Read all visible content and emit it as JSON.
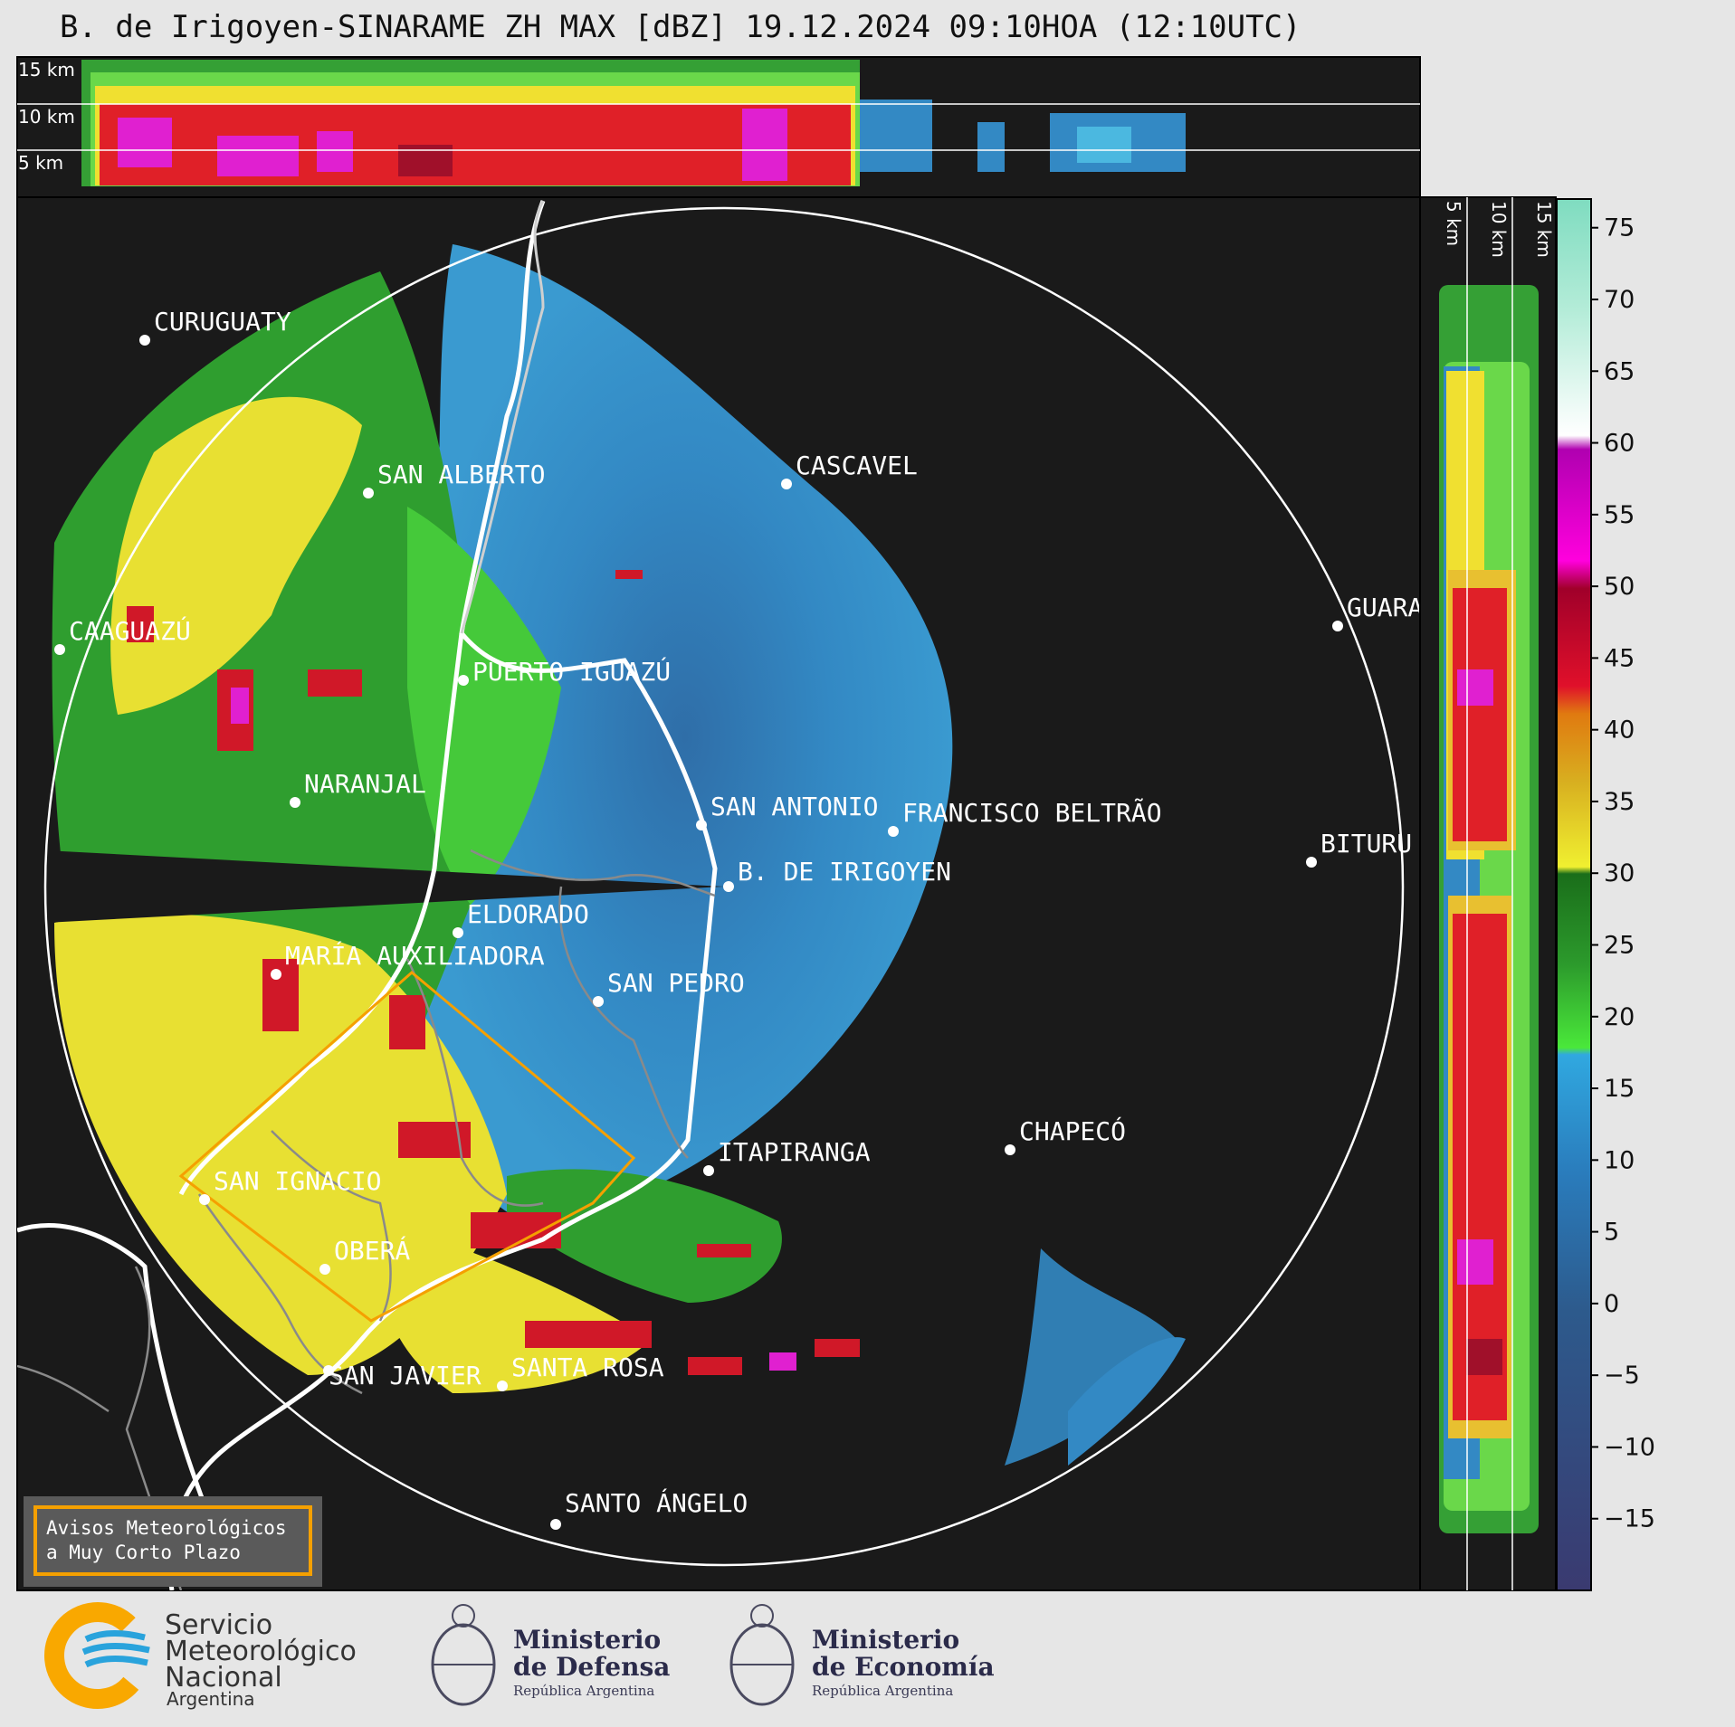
{
  "title": "B. de Irigoyen-SINARAME ZH MAX [dBZ] 19.12.2024 09:10HOA (12:10UTC)",
  "top_altitude_labels": [
    "15 km",
    "10 km",
    "5 km"
  ],
  "side_altitude_labels": [
    "5 km",
    "10 km",
    "15 km"
  ],
  "cities": [
    {
      "name": "CURUGUATY"
    },
    {
      "name": "SAN ALBERTO"
    },
    {
      "name": "CASCAVEL"
    },
    {
      "name": "CAAGUAZÚ"
    },
    {
      "name": "PUERTO IGUAZÚ"
    },
    {
      "name": "GUARA"
    },
    {
      "name": "NARANJAL"
    },
    {
      "name": "SAN ANTONIO"
    },
    {
      "name": "FRANCISCO BELTRÃO"
    },
    {
      "name": "BITURU"
    },
    {
      "name": "B. DE IRIGOYEN"
    },
    {
      "name": "ELDORADO"
    },
    {
      "name": "MARÍA AUXILIADORA"
    },
    {
      "name": "SAN PEDRO"
    },
    {
      "name": "ITAPIRANGA"
    },
    {
      "name": "CHAPECÓ"
    },
    {
      "name": "SAN IGNACIO"
    },
    {
      "name": "OBERÁ"
    },
    {
      "name": "SAN JAVIER"
    },
    {
      "name": "SANTA ROSA"
    },
    {
      "name": "SANTO ÁNGELO"
    }
  ],
  "colorbar": {
    "unit": "dBZ",
    "ticks": [
      "75",
      "70",
      "65",
      "60",
      "55",
      "50",
      "45",
      "40",
      "35",
      "30",
      "25",
      "20",
      "15",
      "10",
      "5",
      "0",
      "−5",
      "−10",
      "−15"
    ],
    "range": [
      -20,
      77
    ]
  },
  "aviso": {
    "line1": "Avisos Meteorológicos",
    "line2": "a Muy Corto Plazo"
  },
  "logos": {
    "smn": [
      "Servicio",
      "Meteorológico",
      "Nacional",
      "Argentina"
    ],
    "defensa": [
      "Ministerio",
      "de Defensa",
      "República Argentina"
    ],
    "economia": [
      "Ministerio",
      "de Economía",
      "República Argentina"
    ]
  },
  "colors": {
    "background": "#1a1a1a",
    "frame": "#000000",
    "range_ring": "#ffffff",
    "warning_polygon": "#f5a000",
    "smn_orange": "#f9a800",
    "smn_blue": "#29a3dc"
  }
}
